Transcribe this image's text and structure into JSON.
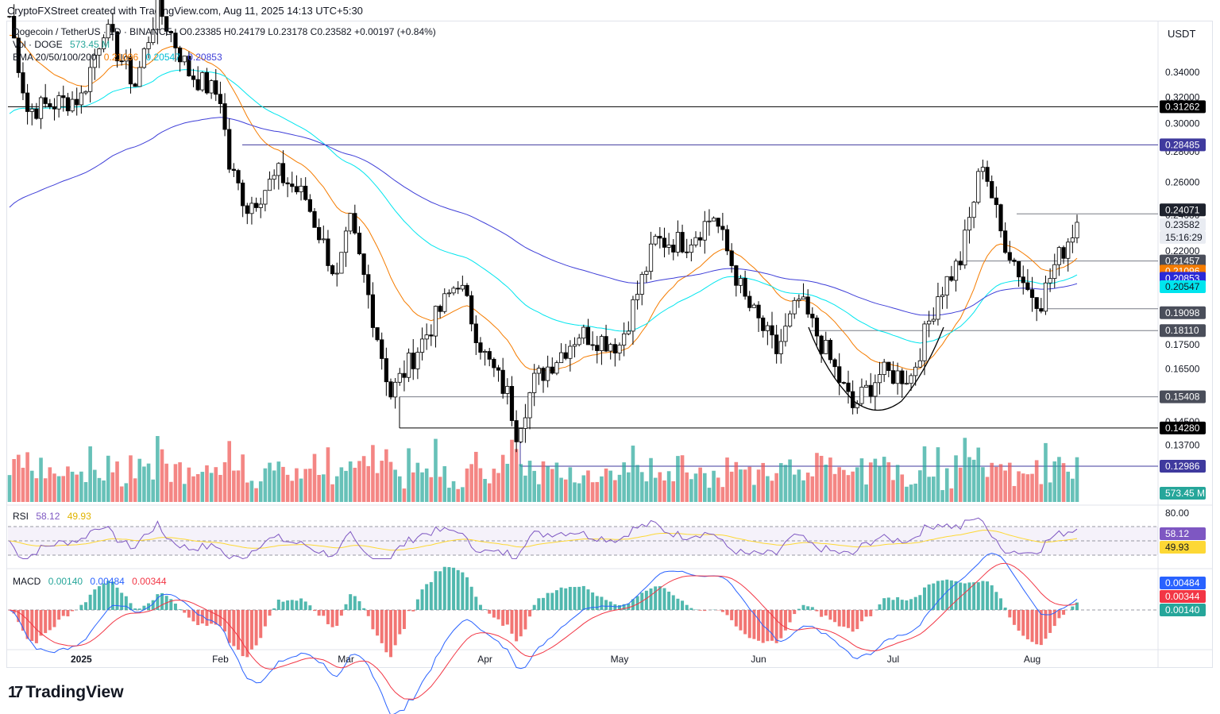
{
  "header": {
    "created_by": "CryptoFXStreet created with TradingView.com, Aug 11, 2025 14:13 UTC+5:30"
  },
  "legend": {
    "symbol": "Dogecoin / TetherUS · 1D · BINANCE",
    "ohlc": "O0.23385 H0.24179 L0.23178 C0.23582 +0.00197 (+0.84%)",
    "vol_label": "Vol · DOGE",
    "vol_value": "573.45 M",
    "ema_label": "EMA 20/50/100/200",
    "ema20": "0.21096",
    "ema50": "0.20547",
    "ema100": "0.20853",
    "rsi_label": "RSI",
    "rsi_value": "58.12",
    "rsi_ma": "49.93",
    "macd_label": "MACD",
    "macd_hist": "0.00140",
    "macd_line": "0.00484",
    "macd_signal": "0.00344"
  },
  "price_axis": {
    "currency": "USDT",
    "ticks": [
      "0.34000",
      "0.32000",
      "0.30000",
      "0.28000",
      "0.26000",
      "0.24000",
      "0.22000",
      "0.17500",
      "0.16500",
      "0.14500",
      "0.13700"
    ],
    "tags": [
      {
        "label": "0.31262",
        "bg": "#000000",
        "fg": "#ffffff"
      },
      {
        "label": "0.28485",
        "bg": "#3f3a9e",
        "fg": "#ffffff"
      },
      {
        "label": "0.24071",
        "bg": "#1e222d",
        "fg": "#ffffff"
      },
      {
        "label": "0.23582",
        "bg": "#e9ecf2",
        "fg": "#131722"
      },
      {
        "label": "15:16:29",
        "bg": "#e9ecf2",
        "fg": "#131722"
      },
      {
        "label": "0.21457",
        "bg": "#4a4e5a",
        "fg": "#ffffff"
      },
      {
        "label": "0.21096",
        "bg": "#f57c00",
        "fg": "#ffffff"
      },
      {
        "label": "0.20853",
        "bg": "#2a2ad8",
        "fg": "#ffffff"
      },
      {
        "label": "0.20547",
        "bg": "#00e5ee",
        "fg": "#131722"
      },
      {
        "label": "0.19098",
        "bg": "#4a4e5a",
        "fg": "#ffffff"
      },
      {
        "label": "0.18110",
        "bg": "#4a4e5a",
        "fg": "#ffffff"
      },
      {
        "label": "0.15408",
        "bg": "#4a4e5a",
        "fg": "#ffffff"
      },
      {
        "label": "0.14280",
        "bg": "#000000",
        "fg": "#ffffff"
      },
      {
        "label": "0.12986",
        "bg": "#3f3a9e",
        "fg": "#ffffff"
      },
      {
        "label": "573.45 M",
        "bg": "#26a69a",
        "fg": "#ffffff"
      }
    ],
    "rsi_ticks": [
      "80.00"
    ],
    "rsi_tags": [
      {
        "label": "58.12",
        "bg": "#7e57c2",
        "fg": "#ffffff"
      },
      {
        "label": "49.93",
        "bg": "#fdd835",
        "fg": "#131722"
      }
    ],
    "macd_tags": [
      {
        "label": "0.00484",
        "bg": "#2962ff",
        "fg": "#ffffff"
      },
      {
        "label": "0.00344",
        "bg": "#f23645",
        "fg": "#ffffff"
      },
      {
        "label": "0.00140",
        "bg": "#26a69a",
        "fg": "#ffffff"
      }
    ]
  },
  "time_axis": [
    "2025",
    "Feb",
    "Mar",
    "Apr",
    "May",
    "Jun",
    "Jul",
    "Aug"
  ],
  "brand": "TradingView",
  "colors": {
    "up": "#ffffff",
    "down": "#000000",
    "vol_up": "#26a69a",
    "vol_down": "#ef5350",
    "ema20": "#f57c00",
    "ema50": "#00e5ee",
    "ema100": "#3f3fd8",
    "rsi": "#7e57c2",
    "rsi_ma": "#fdd835",
    "macd": "#2962ff",
    "signal": "#f23645"
  },
  "chart_data": {
    "type": "candlestick",
    "title": "Dogecoin / TetherUS · 1D · BINANCE",
    "x_range": [
      "2024-12-16",
      "2025-08-11"
    ],
    "ylim": [
      0.125,
      0.36
    ],
    "y_scale": "log",
    "anchors": [
      {
        "date": "2024-12-16",
        "close": 0.39
      },
      {
        "date": "2024-12-20",
        "close": 0.31
      },
      {
        "date": "2025-01-01",
        "close": 0.32
      },
      {
        "date": "2025-01-06",
        "close": 0.38
      },
      {
        "date": "2025-01-13",
        "close": 0.33
      },
      {
        "date": "2025-01-18",
        "close": 0.4
      },
      {
        "date": "2025-01-25",
        "close": 0.34
      },
      {
        "date": "2025-02-01",
        "close": 0.32
      },
      {
        "date": "2025-02-03",
        "close": 0.27
      },
      {
        "date": "2025-02-07",
        "close": 0.245
      },
      {
        "date": "2025-02-14",
        "close": 0.265
      },
      {
        "date": "2025-02-20",
        "close": 0.25
      },
      {
        "date": "2025-02-27",
        "close": 0.205
      },
      {
        "date": "2025-03-02",
        "close": 0.235
      },
      {
        "date": "2025-03-06",
        "close": 0.197
      },
      {
        "date": "2025-03-11",
        "close": 0.155
      },
      {
        "date": "2025-03-16",
        "close": 0.17
      },
      {
        "date": "2025-03-26",
        "close": 0.205
      },
      {
        "date": "2025-04-01",
        "close": 0.17
      },
      {
        "date": "2025-04-06",
        "close": 0.155
      },
      {
        "date": "2025-04-08",
        "close": 0.142
      },
      {
        "date": "2025-04-12",
        "close": 0.16
      },
      {
        "date": "2025-04-22",
        "close": 0.18
      },
      {
        "date": "2025-05-01",
        "close": 0.175
      },
      {
        "date": "2025-05-09",
        "close": 0.225
      },
      {
        "date": "2025-05-16",
        "close": 0.225
      },
      {
        "date": "2025-05-22",
        "close": 0.24
      },
      {
        "date": "2025-05-29",
        "close": 0.195
      },
      {
        "date": "2025-06-05",
        "close": 0.172
      },
      {
        "date": "2025-06-10",
        "close": 0.195
      },
      {
        "date": "2025-06-16",
        "close": 0.172
      },
      {
        "date": "2025-06-22",
        "close": 0.15
      },
      {
        "date": "2025-06-28",
        "close": 0.163
      },
      {
        "date": "2025-07-05",
        "close": 0.162
      },
      {
        "date": "2025-07-11",
        "close": 0.198
      },
      {
        "date": "2025-07-16",
        "close": 0.215
      },
      {
        "date": "2025-07-21",
        "close": 0.275
      },
      {
        "date": "2025-07-25",
        "close": 0.23
      },
      {
        "date": "2025-07-31",
        "close": 0.2
      },
      {
        "date": "2025-08-03",
        "close": 0.195
      },
      {
        "date": "2025-08-06",
        "close": 0.212
      },
      {
        "date": "2025-08-11",
        "close": 0.23582
      }
    ],
    "levels": [
      0.31262,
      0.28485,
      0.24071,
      0.21457,
      0.19098,
      0.1811,
      0.15408,
      0.1428,
      0.12986
    ],
    "emas": {
      "ema20": 0.21096,
      "ema50": 0.20547,
      "ema100": 0.20853
    },
    "rsi": {
      "value": 58.12,
      "ma": 49.93,
      "upper": 70,
      "lower": 30
    },
    "macd": {
      "macd": 0.00484,
      "signal": 0.00344,
      "hist": 0.0014
    }
  }
}
